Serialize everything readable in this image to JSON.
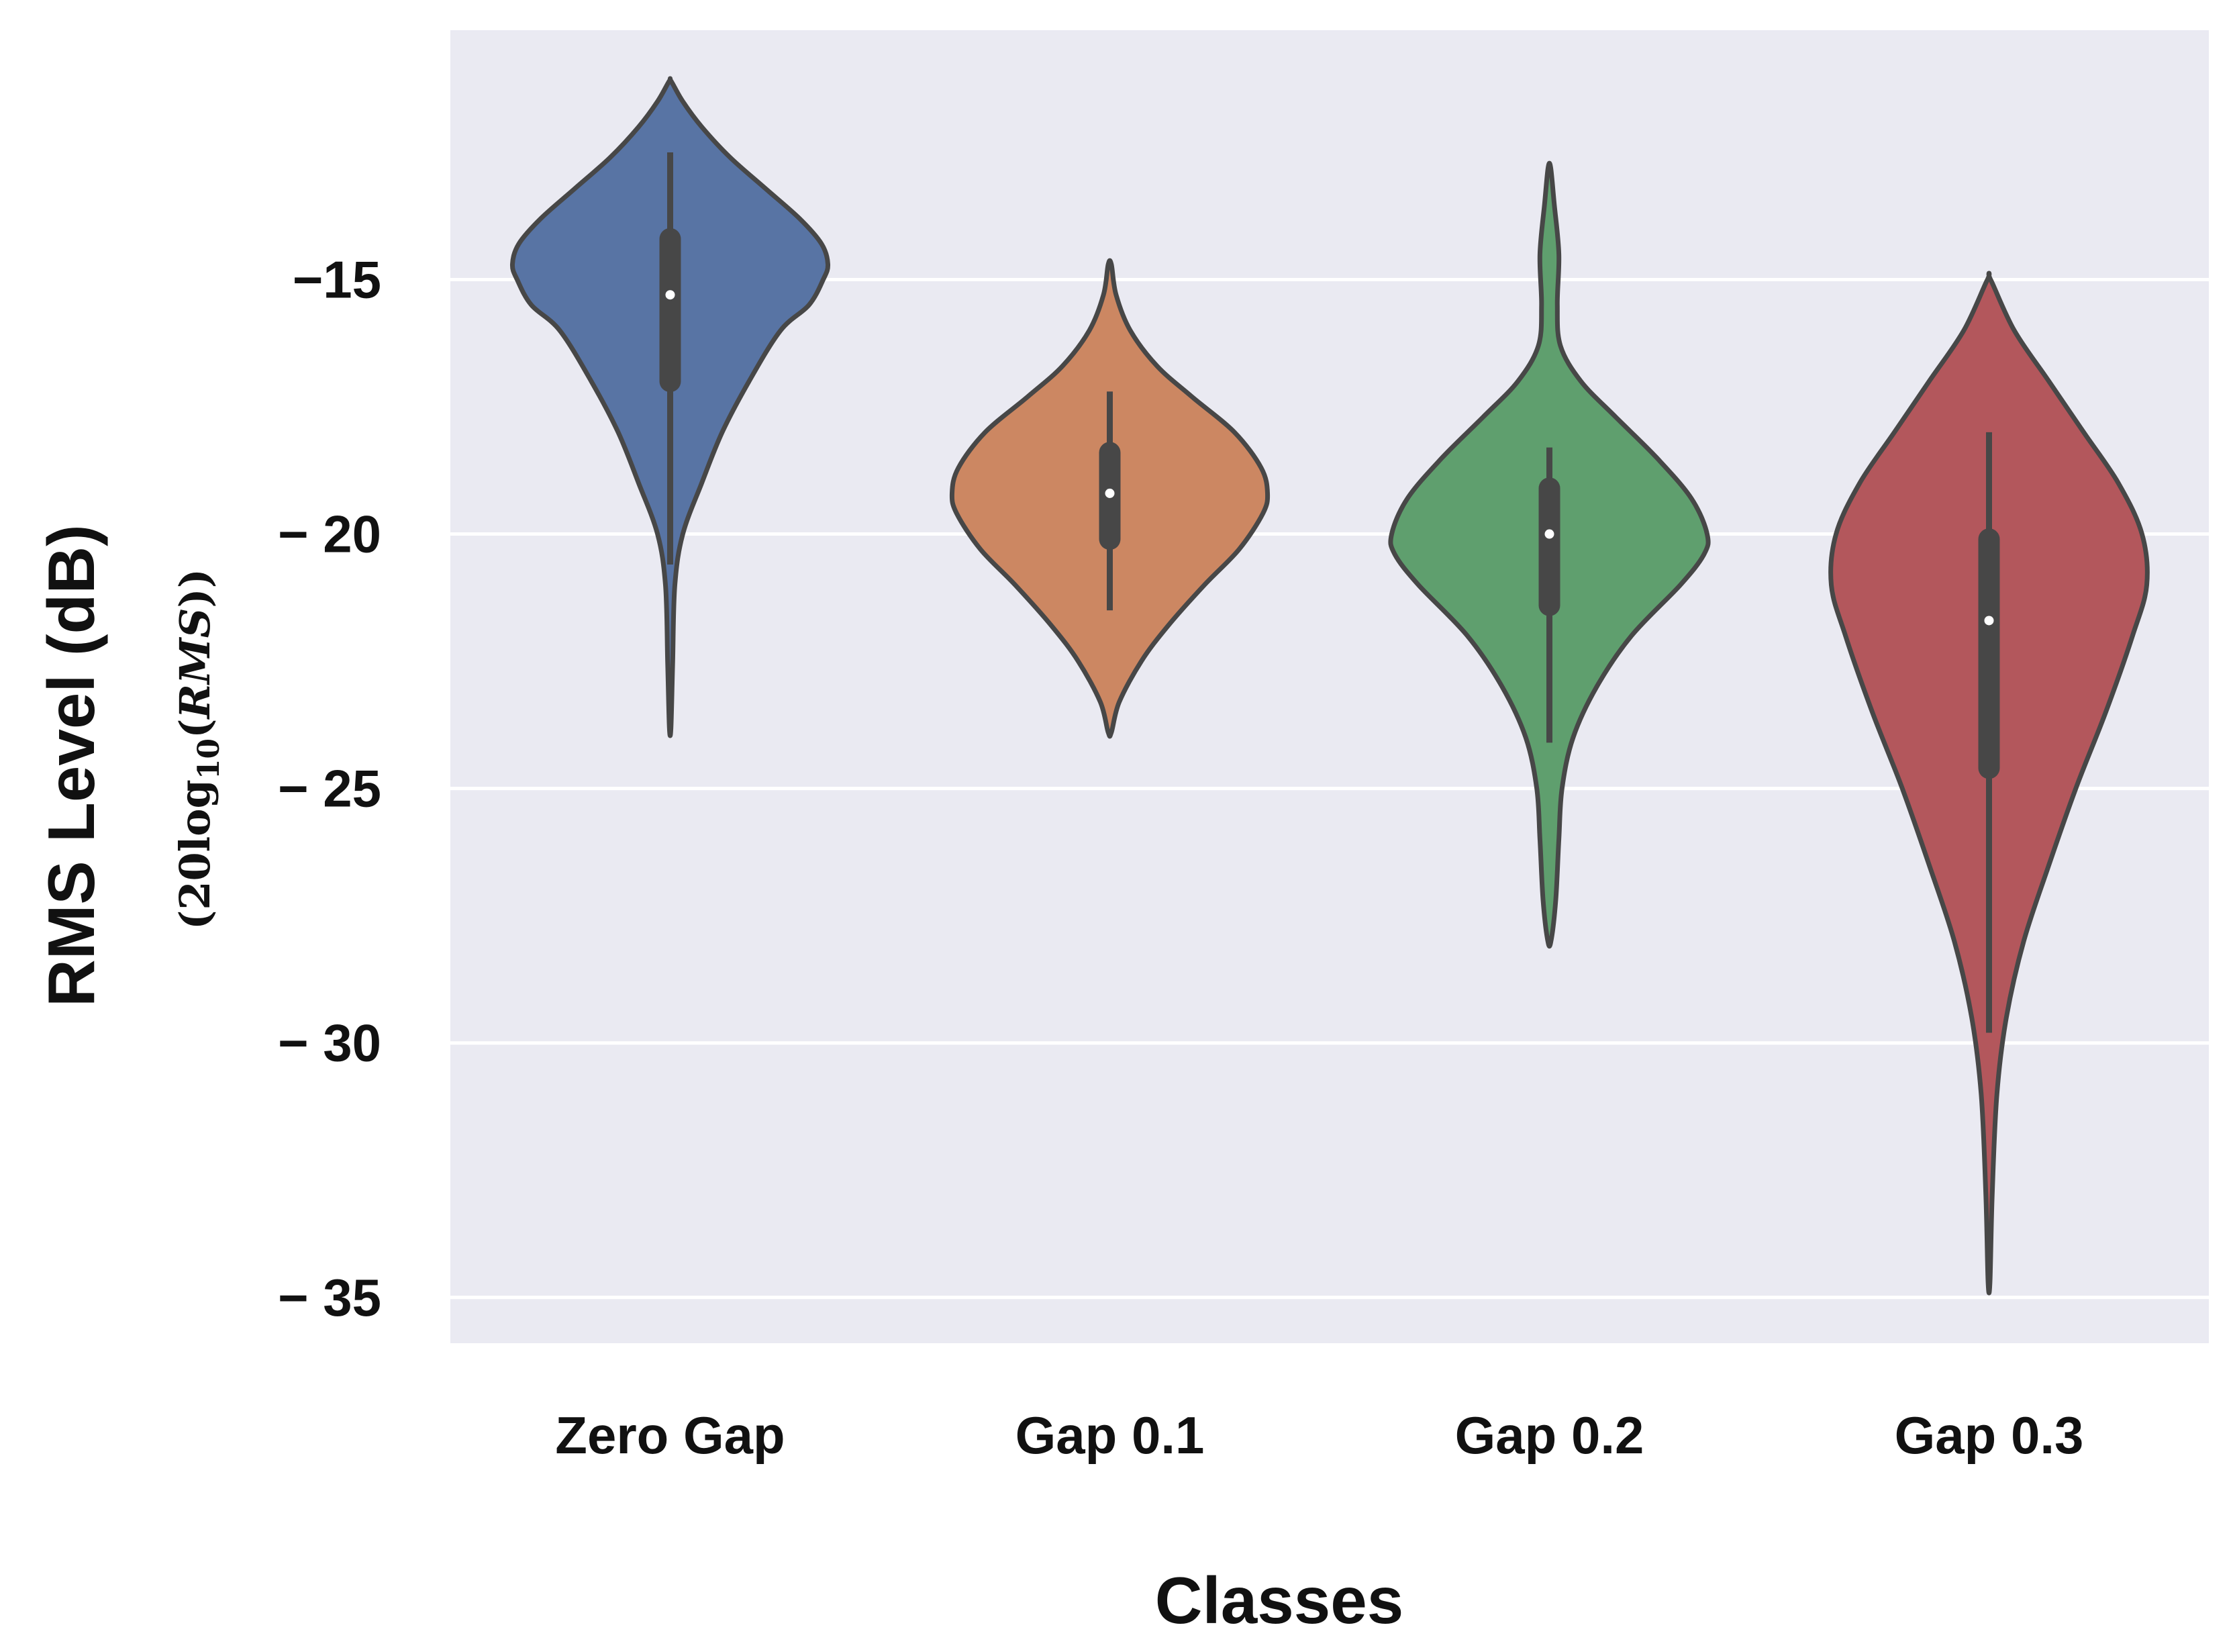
{
  "chart_data": {
    "type": "violin",
    "xlabel": "Classes",
    "ylabel": "RMS Level (dB)",
    "ylabel_sub": {
      "prefix": "(20",
      "log": "log",
      "base": "10",
      "open": "(",
      "arg": "RMS",
      "close": "))"
    },
    "ylim": [
      -35.9,
      -10.1
    ],
    "yticks": [
      -15,
      -20,
      -25,
      -30,
      -35
    ],
    "ytick_labels": [
      "−15",
      "− 20",
      "− 25",
      "− 30",
      "− 35"
    ],
    "grid": true,
    "categories": [
      "Zero Gap",
      "Gap 0.1",
      "Gap 0.2",
      "Gap 0.3"
    ],
    "series": [
      {
        "name": "Zero Gap",
        "color": "#5874a4",
        "min": -23.8,
        "max": -11.1,
        "q1": -17.0,
        "median": -15.3,
        "q3": -14.2,
        "whisker_low": -20.6,
        "whisker_high": -12.5,
        "profile": [
          [
            -23.8,
            0.005
          ],
          [
            -22.5,
            0.016
          ],
          [
            -21.0,
            0.03
          ],
          [
            -20.0,
            0.08
          ],
          [
            -19.0,
            0.2
          ],
          [
            -18.0,
            0.33
          ],
          [
            -17.0,
            0.5
          ],
          [
            -16.0,
            0.7
          ],
          [
            -15.5,
            0.88
          ],
          [
            -15.0,
            0.97
          ],
          [
            -14.7,
            1.0
          ],
          [
            -14.3,
            0.96
          ],
          [
            -13.8,
            0.82
          ],
          [
            -13.2,
            0.6
          ],
          [
            -12.6,
            0.38
          ],
          [
            -12.0,
            0.2
          ],
          [
            -11.5,
            0.08
          ],
          [
            -11.1,
            0.006
          ]
        ]
      },
      {
        "name": "Gap 0.1",
        "color": "#cc8762",
        "min": -23.9,
        "max": -14.7,
        "q1": -20.1,
        "median": -19.2,
        "q3": -18.4,
        "whisker_low": -21.5,
        "whisker_high": -17.2,
        "profile": [
          [
            -23.9,
            0.01
          ],
          [
            -23.3,
            0.06
          ],
          [
            -22.5,
            0.2
          ],
          [
            -21.8,
            0.37
          ],
          [
            -21.0,
            0.6
          ],
          [
            -20.3,
            0.82
          ],
          [
            -19.6,
            0.97
          ],
          [
            -19.2,
            1.0
          ],
          [
            -18.7,
            0.96
          ],
          [
            -18.0,
            0.79
          ],
          [
            -17.3,
            0.52
          ],
          [
            -16.7,
            0.3
          ],
          [
            -16.0,
            0.13
          ],
          [
            -15.3,
            0.04
          ],
          [
            -14.7,
            0.01
          ]
        ]
      },
      {
        "name": "Gap 0.2",
        "color": "#5f9f6e",
        "min": -28.0,
        "max": -12.8,
        "q1": -21.4,
        "median": -20.0,
        "q3": -19.1,
        "whisker_low": -24.1,
        "whisker_high": -18.3,
        "profile": [
          [
            -28.0,
            0.01
          ],
          [
            -27.2,
            0.04
          ],
          [
            -26.0,
            0.06
          ],
          [
            -25.0,
            0.08
          ],
          [
            -24.0,
            0.15
          ],
          [
            -23.0,
            0.3
          ],
          [
            -22.0,
            0.52
          ],
          [
            -21.0,
            0.83
          ],
          [
            -20.4,
            0.98
          ],
          [
            -20.0,
            1.0
          ],
          [
            -19.3,
            0.9
          ],
          [
            -18.5,
            0.68
          ],
          [
            -17.7,
            0.42
          ],
          [
            -17.0,
            0.2
          ],
          [
            -16.3,
            0.07
          ],
          [
            -15.5,
            0.05
          ],
          [
            -14.5,
            0.06
          ],
          [
            -13.5,
            0.03
          ],
          [
            -12.8,
            0.008
          ]
        ]
      },
      {
        "name": "Gap 0.3",
        "color": "#b3575c",
        "min": -34.7,
        "max": -15.0,
        "q1": -24.6,
        "median": -21.7,
        "q3": -20.1,
        "whisker_low": -29.8,
        "whisker_high": -18.0,
        "profile": [
          [
            -34.7,
            0.006
          ],
          [
            -33.0,
            0.02
          ],
          [
            -31.0,
            0.05
          ],
          [
            -29.5,
            0.11
          ],
          [
            -28.0,
            0.22
          ],
          [
            -26.5,
            0.38
          ],
          [
            -25.0,
            0.55
          ],
          [
            -23.5,
            0.74
          ],
          [
            -22.0,
            0.91
          ],
          [
            -21.0,
            1.0
          ],
          [
            -20.0,
            0.97
          ],
          [
            -19.0,
            0.82
          ],
          [
            -18.0,
            0.6
          ],
          [
            -17.0,
            0.38
          ],
          [
            -16.0,
            0.16
          ],
          [
            -15.0,
            0.01
          ]
        ]
      }
    ]
  }
}
